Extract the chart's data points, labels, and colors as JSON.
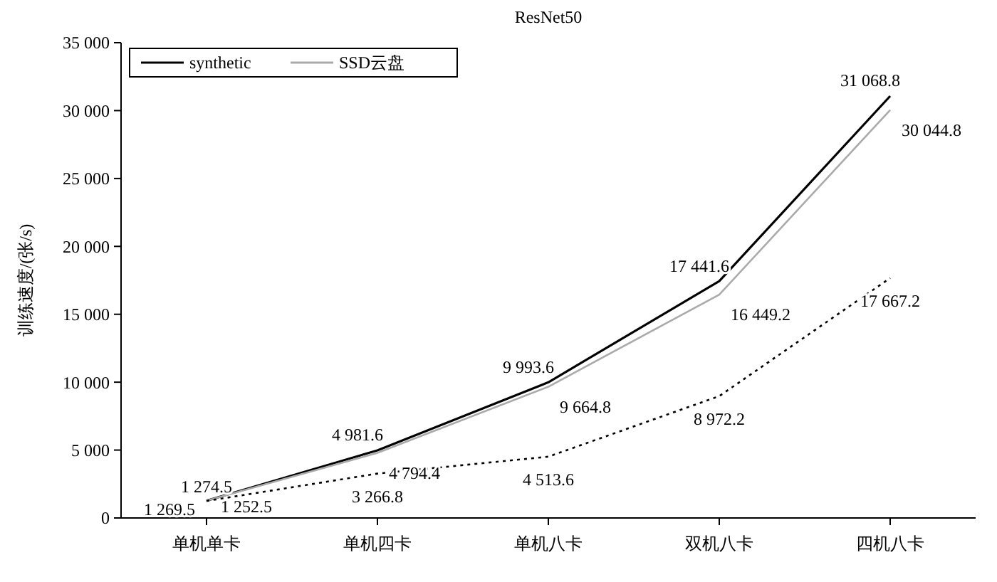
{
  "chart_data": {
    "type": "line",
    "title": "ResNet50",
    "ylabel": "训练速度/(张/s)",
    "categories": [
      "单机单卡",
      "单机四卡",
      "单机八卡",
      "双机八卡",
      "四机八卡"
    ],
    "series": [
      {
        "name": "synthetic",
        "color": "#000000",
        "line_style": "solid",
        "values": [
          1274.5,
          4981.6,
          9993.6,
          17441.6,
          31068.8
        ],
        "value_labels": [
          "1 274.5",
          "4 981.6",
          "9 993.6",
          "17 441.6",
          "31 068.8"
        ]
      },
      {
        "name": "SSD云盘",
        "color": "#aaaaaa",
        "line_style": "solid",
        "values": [
          1269.5,
          4794.4,
          9664.8,
          16449.2,
          30044.8
        ],
        "value_labels": [
          "1 269.5",
          "4 794.4",
          "9 664.8",
          "16 449.2",
          "30 044.8"
        ]
      },
      {
        "color": "#000000",
        "line_style": "dotted",
        "values": [
          1252.5,
          3266.8,
          4513.6,
          8972.2,
          17667.2
        ],
        "value_labels": [
          "1 252.5",
          "3 266.8",
          "4 513.6",
          "8 972.2",
          "17 667.2"
        ]
      }
    ],
    "ylim": [
      0,
      35000
    ],
    "yticks": [
      0,
      {
        "value": 5000,
        "label": "5 000"
      },
      {
        "value": 10000,
        "label": "10 000"
      },
      {
        "value": 15000,
        "label": "15 000"
      },
      {
        "value": 20000,
        "label": "20 000"
      },
      {
        "value": 25000,
        "label": "25 000"
      },
      {
        "value": 30000,
        "label": "30 000"
      },
      {
        "value": 35000,
        "label": "35 000"
      }
    ],
    "grid": false,
    "legend": "top left",
    "marker": "none"
  }
}
